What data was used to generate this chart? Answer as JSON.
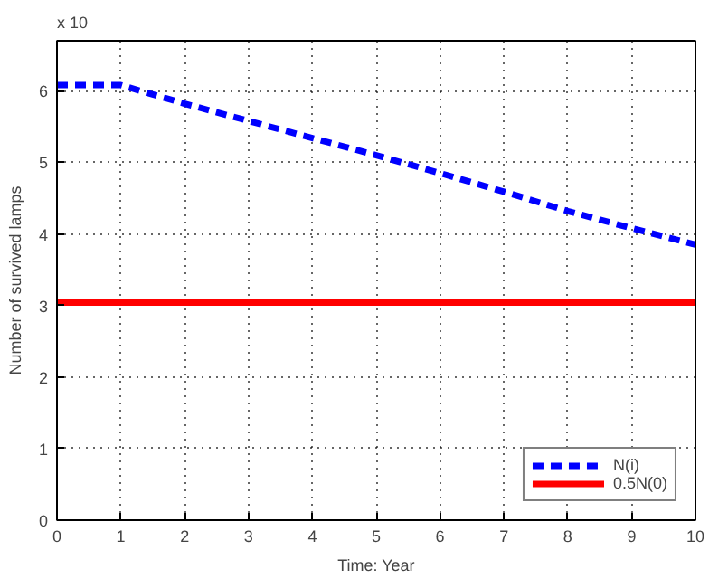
{
  "chart_data": {
    "type": "line",
    "xlabel": "Time: Year",
    "ylabel": "Number of survived lamps",
    "annotations": [
      "x 10"
    ],
    "x": [
      0,
      1,
      2,
      3,
      4,
      5,
      6,
      7,
      8,
      9,
      10
    ],
    "series": [
      {
        "name": "N(i)",
        "color": "#0000ff",
        "line_style": "dashed",
        "values": [
          6.08,
          6.08,
          5.82,
          5.58,
          5.34,
          5.1,
          4.85,
          4.59,
          4.32,
          4.08,
          3.85
        ]
      },
      {
        "name": "0.5N(0)",
        "color": "#ff0000",
        "line_style": "solid",
        "values": [
          3.04,
          3.04,
          3.04,
          3.04,
          3.04,
          3.04,
          3.04,
          3.04,
          3.04,
          3.04,
          3.04
        ]
      }
    ],
    "xlim": [
      0,
      10
    ],
    "ylim": [
      0,
      6.7
    ],
    "xticks": [
      0,
      1,
      2,
      3,
      4,
      5,
      6,
      7,
      8,
      9,
      10
    ],
    "yticks": [
      0,
      1,
      2,
      3,
      4,
      5,
      6
    ],
    "grid": true,
    "legend": "bottom right",
    "marker": "none"
  }
}
